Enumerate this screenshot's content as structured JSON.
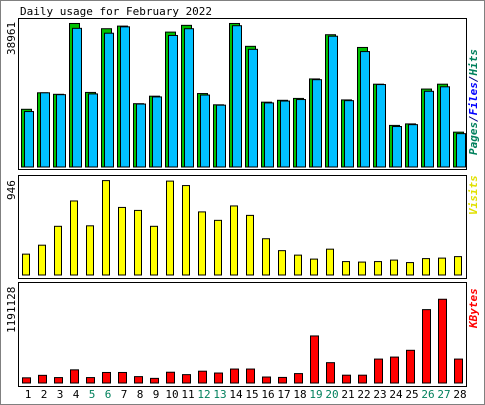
{
  "chart_data": [
    {
      "type": "bar",
      "title": "Daily usage for February 2022",
      "side_label_parts": [
        {
          "text": "Pages",
          "color": "#00805c"
        },
        {
          "text": "/",
          "color": "#000080"
        },
        {
          "text": "Files",
          "color": "#0000ff"
        },
        {
          "text": "/",
          "color": "#000080"
        },
        {
          "text": "Hits",
          "color": "#00805c"
        }
      ],
      "ymax_label": "38961",
      "ylim": [
        0,
        38961
      ],
      "series": [
        {
          "name": "Hits",
          "color": "#00c000",
          "values": [
            15400,
            19800,
            19400,
            38300,
            19900,
            36900,
            37600,
            16900,
            18900,
            36000,
            37800,
            19600,
            16600,
            38300,
            32200,
            17300,
            17800,
            18300,
            23500,
            35300,
            17900,
            31900,
            22100,
            11100,
            11500,
            20800,
            22100,
            9300
          ]
        },
        {
          "name": "Files",
          "color": "#00c0ff",
          "values": [
            14800,
            19800,
            19300,
            37000,
            19500,
            35700,
            37400,
            16800,
            18700,
            35100,
            36900,
            19200,
            16500,
            37700,
            31400,
            17100,
            17600,
            18000,
            23300,
            34900,
            17700,
            30800,
            22000,
            10800,
            11300,
            20200,
            21400,
            8900
          ]
        },
        {
          "name": "Pages",
          "color": "#0000ff",
          "values": [
            0,
            0,
            0,
            0,
            0,
            0,
            0,
            0,
            0,
            0,
            0,
            0,
            0,
            0,
            0,
            0,
            0,
            0,
            0,
            0,
            0,
            0,
            0,
            0,
            0,
            0,
            0,
            0
          ]
        }
      ]
    },
    {
      "type": "bar",
      "side_label": "Visits",
      "side_label_color": "#e0e000",
      "ymax_label": "946",
      "ylim": [
        0,
        946
      ],
      "series": [
        {
          "name": "Visits",
          "color": "#ffff00",
          "values": [
            210,
            300,
            490,
            745,
            495,
            950,
            680,
            650,
            490,
            945,
            900,
            635,
            550,
            695,
            600,
            365,
            245,
            200,
            160,
            260,
            135,
            130,
            135,
            150,
            125,
            165,
            170,
            185
          ]
        }
      ]
    },
    {
      "type": "bar",
      "side_label": "KBytes",
      "side_label_color": "#ff0000",
      "ymax_label": "1191128",
      "ylim": [
        0,
        1191128
      ],
      "series": [
        {
          "name": "KBytes",
          "color": "#ff0000",
          "values": [
            65000,
            96000,
            68000,
            165000,
            68000,
            132000,
            132000,
            80000,
            58000,
            135000,
            105000,
            148000,
            125000,
            175000,
            175000,
            75000,
            70000,
            118000,
            590000,
            255000,
            98000,
            98000,
            300000,
            325000,
            410000,
            920000,
            1050000,
            300000
          ]
        }
      ]
    }
  ],
  "days": [
    {
      "label": "1",
      "color": "#000000"
    },
    {
      "label": "2",
      "color": "#000000"
    },
    {
      "label": "3",
      "color": "#000000"
    },
    {
      "label": "4",
      "color": "#000000"
    },
    {
      "label": "5",
      "color": "#00805c"
    },
    {
      "label": "6",
      "color": "#00805c"
    },
    {
      "label": "7",
      "color": "#000000"
    },
    {
      "label": "8",
      "color": "#000000"
    },
    {
      "label": "9",
      "color": "#000000"
    },
    {
      "label": "10",
      "color": "#000000"
    },
    {
      "label": "11",
      "color": "#000000"
    },
    {
      "label": "12",
      "color": "#00805c"
    },
    {
      "label": "13",
      "color": "#00805c"
    },
    {
      "label": "14",
      "color": "#000000"
    },
    {
      "label": "15",
      "color": "#000000"
    },
    {
      "label": "16",
      "color": "#000000"
    },
    {
      "label": "17",
      "color": "#000000"
    },
    {
      "label": "18",
      "color": "#000000"
    },
    {
      "label": "19",
      "color": "#00805c"
    },
    {
      "label": "20",
      "color": "#00805c"
    },
    {
      "label": "21",
      "color": "#000000"
    },
    {
      "label": "22",
      "color": "#000000"
    },
    {
      "label": "23",
      "color": "#000000"
    },
    {
      "label": "24",
      "color": "#000000"
    },
    {
      "label": "25",
      "color": "#000000"
    },
    {
      "label": "26",
      "color": "#00805c"
    },
    {
      "label": "27",
      "color": "#00805c"
    },
    {
      "label": "28",
      "color": "#000000"
    }
  ],
  "colors": {
    "background": "#ffffff",
    "frame": "#808080",
    "bar_outline": "#000000"
  }
}
